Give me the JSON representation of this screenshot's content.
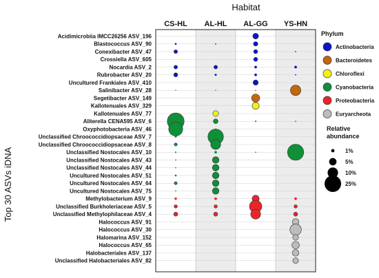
{
  "chart_data": {
    "type": "scatter",
    "title": "Habitat",
    "ylabel": "Top 30 ASVs iDNA",
    "categories": [
      "CS-HL",
      "AL-HL",
      "AL-GG",
      "YS-HN"
    ],
    "rows": [
      {
        "label": "Acidimicrobiia IMCC26256 ASV_196",
        "phylum": "Actinobacteria",
        "values": [
          0,
          0,
          3,
          0
        ]
      },
      {
        "label": "Blastococcus ASV_90",
        "phylum": "Actinobacteria",
        "values": [
          0.3,
          0.1,
          1.8,
          0
        ]
      },
      {
        "label": "Conexibacter ASV_47",
        "phylum": "Actinobacteria",
        "values": [
          1.2,
          0,
          1.5,
          0.05
        ]
      },
      {
        "label": "Crossiella ASV_605",
        "phylum": "Actinobacteria",
        "values": [
          0,
          0,
          1.5,
          0
        ]
      },
      {
        "label": "Nocardia ASV_2",
        "phylum": "Actinobacteria",
        "values": [
          1.2,
          1.2,
          0.6,
          0.6
        ]
      },
      {
        "label": "Rubrobacter ASV_20",
        "phylum": "Actinobacteria",
        "values": [
          1.5,
          0.4,
          0.6,
          0.1
        ]
      },
      {
        "label": "Uncultured Frankiales ASV_410",
        "phylum": "Actinobacteria",
        "values": [
          0,
          0,
          2.5,
          0
        ]
      },
      {
        "label": "Salinibacter ASV_28",
        "phylum": "Bacteroidetes",
        "values": [
          0.1,
          0.1,
          0.1,
          10
        ]
      },
      {
        "label": "Segetibacter ASV_149",
        "phylum": "Bacteroidetes",
        "values": [
          0,
          0,
          6,
          0
        ]
      },
      {
        "label": "Kallotenuales ASV_329",
        "phylum": "Chloroflexi",
        "values": [
          0.05,
          0,
          4.5,
          0
        ]
      },
      {
        "label": "Kallotenuales ASV_77",
        "phylum": "Chloroflexi",
        "values": [
          0,
          3,
          0.05,
          0
        ]
      },
      {
        "label": "Aliterella CENA595 ASV_6",
        "phylum": "Cyanobacteria",
        "values": [
          26,
          2,
          0.2,
          0.1
        ]
      },
      {
        "label": "Oxyphotobacteria ASV_46",
        "phylum": "Cyanobacteria",
        "values": [
          18,
          0.1,
          0,
          0
        ]
      },
      {
        "label": "Unclassified Chroococcidiopsaceae ASV_7",
        "phylum": "Cyanobacteria",
        "values": [
          0.3,
          22,
          0,
          0
        ]
      },
      {
        "label": "Unclassified Chroococcidiopsaceae ASV_8",
        "phylum": "Cyanobacteria",
        "values": [
          0.8,
          9,
          0,
          0
        ]
      },
      {
        "label": "Unclassified Nostocales ASV_10",
        "phylum": "Cyanobacteria",
        "values": [
          0.2,
          0.6,
          0.1,
          24
        ]
      },
      {
        "label": "Unclassified Nostocales ASV_43",
        "phylum": "Cyanobacteria",
        "values": [
          0.1,
          4,
          0,
          0
        ]
      },
      {
        "label": "Unclassified Nostocales ASV_44",
        "phylum": "Cyanobacteria",
        "values": [
          0.1,
          4,
          0,
          0
        ]
      },
      {
        "label": "Uncultured Nostocales ASV_51",
        "phylum": "Cyanobacteria",
        "values": [
          0.3,
          4,
          0,
          0
        ]
      },
      {
        "label": "Uncultured Nostocales ASV_64",
        "phylum": "Cyanobacteria",
        "values": [
          0.8,
          4,
          0,
          0
        ]
      },
      {
        "label": "Uncultured Nostocales ASV_75",
        "phylum": "Cyanobacteria",
        "values": [
          0.1,
          4,
          0,
          0
        ]
      },
      {
        "label": "Methylobacterium ASV_9",
        "phylum": "Proteobacteria",
        "values": [
          0.5,
          0.6,
          4.5,
          0.6
        ]
      },
      {
        "label": "Unclassified Burkholeriaceae ASV_5",
        "phylum": "Proteobacteria",
        "values": [
          1,
          1,
          14,
          1
        ]
      },
      {
        "label": "Unclassified Methylophilaceae ASV_4",
        "phylum": "Proteobacteria",
        "values": [
          1.5,
          1.5,
          9,
          1.5
        ]
      },
      {
        "label": "Halococcus ASV_91",
        "phylum": "Euryarcheota",
        "values": [
          0,
          0,
          0,
          4
        ]
      },
      {
        "label": "Halococcus ASV_30",
        "phylum": "Euryarcheota",
        "values": [
          0,
          0,
          0,
          12
        ]
      },
      {
        "label": "Halomarina ASV_152",
        "phylum": "Euryarcheota",
        "values": [
          0,
          0,
          0,
          3
        ]
      },
      {
        "label": "Halococcus ASV_65",
        "phylum": "Euryarcheota",
        "values": [
          0,
          0,
          0,
          5
        ]
      },
      {
        "label": "Halobacteriales ASV_137",
        "phylum": "Euryarcheota",
        "values": [
          0,
          0,
          0,
          4
        ]
      },
      {
        "label": "Unclassified Halobacteriales ASV_82",
        "phylum": "Euryarcheota",
        "values": [
          0,
          0,
          0,
          3
        ]
      }
    ],
    "legend": {
      "phylum_title": "Phylum",
      "phyla": [
        {
          "name": "Actinobacteria",
          "color": "#0a16c8"
        },
        {
          "name": "Bacteroidetes",
          "color": "#c2670f"
        },
        {
          "name": "Chloroflexi",
          "color": "#f2f218"
        },
        {
          "name": "Cyanobacteria",
          "color": "#0f8f37"
        },
        {
          "name": "Proteobacteria",
          "color": "#e8262a"
        },
        {
          "name": "Euryarcheota",
          "color": "#bcbcbc"
        }
      ],
      "size_title": "Relative abundance",
      "sizes": [
        {
          "label": "1%",
          "value": 1
        },
        {
          "label": "5%",
          "value": 5
        },
        {
          "label": "10%",
          "value": 10
        },
        {
          "label": "25%",
          "value": 25
        }
      ]
    },
    "shaded_columns": [
      "AL-HL",
      "YS-HN"
    ],
    "grid": true
  }
}
